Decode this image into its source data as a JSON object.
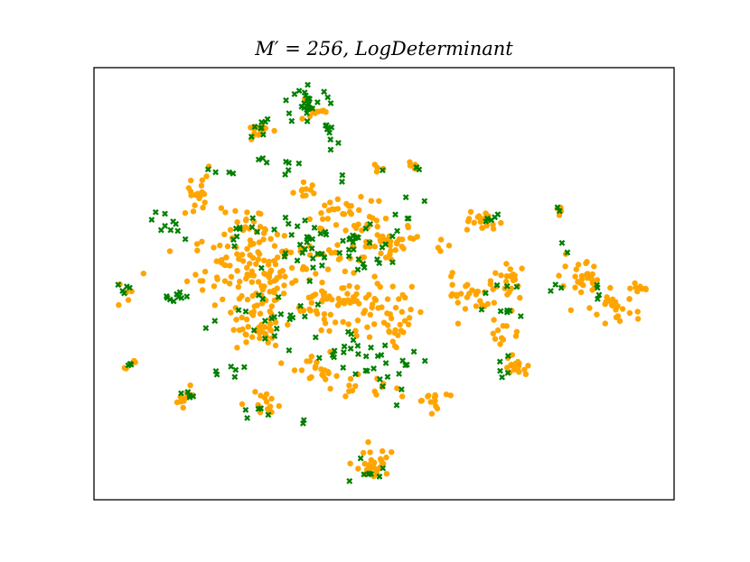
{
  "chart_data": {
    "type": "scatter",
    "title": "M′ = 256, LogDeterminant",
    "xlabel": "",
    "ylabel": "",
    "axis_ticks": "none",
    "grid": false,
    "legend": "none",
    "xlim": [
      0,
      100
    ],
    "ylim": [
      0,
      100
    ],
    "series": [
      {
        "marker": "circle",
        "color": "#FFA500",
        "clusters": [
          {
            "cx": 18,
            "cy": 70,
            "rx": 3,
            "ry": 4,
            "n": 20
          },
          {
            "cx": 27,
            "cy": 63,
            "rx": 4,
            "ry": 4,
            "n": 18
          },
          {
            "cx": 30,
            "cy": 53,
            "rx": 11,
            "ry": 8,
            "n": 150
          },
          {
            "cx": 45,
            "cy": 45,
            "rx": 8,
            "ry": 6,
            "n": 70
          },
          {
            "cx": 47,
            "cy": 60,
            "rx": 6,
            "ry": 5,
            "n": 40
          },
          {
            "cx": 28,
            "cy": 40,
            "rx": 4,
            "ry": 4,
            "n": 40
          },
          {
            "cx": 38,
            "cy": 30,
            "rx": 4,
            "ry": 3,
            "n": 20
          },
          {
            "cx": 30,
            "cy": 22,
            "rx": 3,
            "ry": 3,
            "n": 15
          },
          {
            "cx": 45,
            "cy": 26,
            "rx": 5,
            "ry": 3,
            "n": 15
          },
          {
            "cx": 52,
            "cy": 40,
            "rx": 3,
            "ry": 3,
            "n": 15
          },
          {
            "cx": 58,
            "cy": 23,
            "rx": 2,
            "ry": 2,
            "n": 15
          },
          {
            "cx": 48,
            "cy": 8,
            "rx": 3,
            "ry": 3,
            "n": 30
          },
          {
            "cx": 28,
            "cy": 85,
            "rx": 2,
            "ry": 2,
            "n": 15
          },
          {
            "cx": 38,
            "cy": 90,
            "rx": 3,
            "ry": 2,
            "n": 12
          },
          {
            "cx": 16,
            "cy": 24,
            "rx": 2,
            "ry": 2,
            "n": 12
          },
          {
            "cx": 6,
            "cy": 31,
            "rx": 1,
            "ry": 1,
            "n": 5
          },
          {
            "cx": 5,
            "cy": 48,
            "rx": 1,
            "ry": 2,
            "n": 5
          },
          {
            "cx": 67,
            "cy": 64,
            "rx": 2,
            "ry": 2,
            "n": 20
          },
          {
            "cx": 67,
            "cy": 48,
            "rx": 6,
            "ry": 4,
            "n": 40
          },
          {
            "cx": 71,
            "cy": 38,
            "rx": 2,
            "ry": 2,
            "n": 10
          },
          {
            "cx": 73,
            "cy": 31,
            "rx": 2,
            "ry": 2,
            "n": 20
          },
          {
            "cx": 72,
            "cy": 52,
            "rx": 2,
            "ry": 2,
            "n": 12
          },
          {
            "cx": 84,
            "cy": 50,
            "rx": 3,
            "ry": 4,
            "n": 30
          },
          {
            "cx": 90,
            "cy": 44,
            "rx": 3,
            "ry": 3,
            "n": 25
          },
          {
            "cx": 93,
            "cy": 49,
            "rx": 2,
            "ry": 1,
            "n": 8
          },
          {
            "cx": 80,
            "cy": 67,
            "rx": 1,
            "ry": 1,
            "n": 5
          },
          {
            "cx": 49,
            "cy": 76,
            "rx": 1,
            "ry": 1,
            "n": 4
          },
          {
            "cx": 55,
            "cy": 77,
            "rx": 1,
            "ry": 1,
            "n": 5
          },
          {
            "cx": 60,
            "cy": 59,
            "rx": 1,
            "ry": 1,
            "n": 4
          },
          {
            "cx": 43,
            "cy": 67,
            "rx": 5,
            "ry": 3,
            "n": 25
          },
          {
            "cx": 36,
            "cy": 71,
            "rx": 2,
            "ry": 2,
            "n": 10
          },
          {
            "cx": 52,
            "cy": 59,
            "rx": 3,
            "ry": 3,
            "n": 15
          }
        ]
      },
      {
        "marker": "x",
        "color": "#008000",
        "clusters": [
          {
            "cx": 37,
            "cy": 92,
            "rx": 3,
            "ry": 3,
            "n": 25
          },
          {
            "cx": 41,
            "cy": 85,
            "rx": 1,
            "ry": 2,
            "n": 8
          },
          {
            "cx": 28,
            "cy": 86,
            "rx": 2,
            "ry": 2,
            "n": 8
          },
          {
            "cx": 29,
            "cy": 79,
            "rx": 1,
            "ry": 1,
            "n": 3
          },
          {
            "cx": 34,
            "cy": 77,
            "rx": 2,
            "ry": 2,
            "n": 5
          },
          {
            "cx": 24,
            "cy": 76,
            "rx": 3,
            "ry": 1,
            "n": 4
          },
          {
            "cx": 13,
            "cy": 63,
            "rx": 4,
            "ry": 3,
            "n": 10
          },
          {
            "cx": 26,
            "cy": 62,
            "rx": 4,
            "ry": 3,
            "n": 10
          },
          {
            "cx": 36,
            "cy": 60,
            "rx": 5,
            "ry": 6,
            "n": 25
          },
          {
            "cx": 47,
            "cy": 58,
            "rx": 7,
            "ry": 7,
            "n": 30
          },
          {
            "cx": 14,
            "cy": 47,
            "rx": 2,
            "ry": 1,
            "n": 10
          },
          {
            "cx": 5,
            "cy": 49,
            "rx": 1,
            "ry": 1,
            "n": 3
          },
          {
            "cx": 30,
            "cy": 43,
            "rx": 7,
            "ry": 5,
            "n": 20
          },
          {
            "cx": 44,
            "cy": 35,
            "rx": 8,
            "ry": 6,
            "n": 25
          },
          {
            "cx": 52,
            "cy": 30,
            "rx": 4,
            "ry": 4,
            "n": 12
          },
          {
            "cx": 24,
            "cy": 30,
            "rx": 3,
            "ry": 2,
            "n": 6
          },
          {
            "cx": 17,
            "cy": 24,
            "rx": 2,
            "ry": 1,
            "n": 5
          },
          {
            "cx": 28,
            "cy": 21,
            "rx": 2,
            "ry": 2,
            "n": 5
          },
          {
            "cx": 36,
            "cy": 18,
            "rx": 1,
            "ry": 1,
            "n": 2
          },
          {
            "cx": 47,
            "cy": 7,
            "rx": 3,
            "ry": 3,
            "n": 8
          },
          {
            "cx": 6,
            "cy": 31,
            "rx": 1,
            "ry": 1,
            "n": 3
          },
          {
            "cx": 6,
            "cy": 50,
            "rx": 1,
            "ry": 2,
            "n": 2
          },
          {
            "cx": 68,
            "cy": 65,
            "rx": 2,
            "ry": 1,
            "n": 5
          },
          {
            "cx": 72,
            "cy": 47,
            "rx": 4,
            "ry": 6,
            "n": 10
          },
          {
            "cx": 71,
            "cy": 30,
            "rx": 2,
            "ry": 2,
            "n": 5
          },
          {
            "cx": 80,
            "cy": 49,
            "rx": 2,
            "ry": 1,
            "n": 3
          },
          {
            "cx": 81,
            "cy": 58,
            "rx": 1,
            "ry": 1,
            "n": 2
          },
          {
            "cx": 87,
            "cy": 48,
            "rx": 2,
            "ry": 2,
            "n": 4
          },
          {
            "cx": 56,
            "cy": 77,
            "rx": 1,
            "ry": 1,
            "n": 3
          },
          {
            "cx": 49,
            "cy": 76,
            "rx": 1,
            "ry": 1,
            "n": 1
          },
          {
            "cx": 54,
            "cy": 66,
            "rx": 2,
            "ry": 3,
            "n": 5
          },
          {
            "cx": 80,
            "cy": 67,
            "rx": 1,
            "ry": 1,
            "n": 2
          },
          {
            "cx": 43,
            "cy": 75,
            "rx": 1,
            "ry": 1,
            "n": 2
          }
        ]
      }
    ]
  }
}
